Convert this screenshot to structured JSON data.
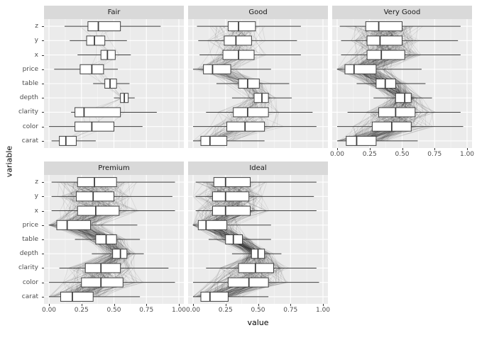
{
  "chart_data": {
    "type": "boxplot",
    "subtype": "faceted-horizontal-boxplots-with-parallel-coordinate-lines",
    "xlabel": "value",
    "ylabel": "variable",
    "xlim": [
      0,
      1
    ],
    "x_ticks": [
      "0.00",
      "0.25",
      "0.50",
      "0.75",
      "1.00"
    ],
    "x_tick_values": [
      0,
      0.25,
      0.5,
      0.75,
      1
    ],
    "categories_order": "top-to-bottom",
    "categories": [
      "z",
      "y",
      "x",
      "price",
      "table",
      "depth",
      "clarity",
      "color",
      "carat"
    ],
    "box_stats_key": [
      "min",
      "q1",
      "median",
      "q3",
      "max"
    ],
    "layout": {
      "rows": 2,
      "cols": 3,
      "grid": "off-white-on-gray",
      "legend": "none"
    },
    "style": {
      "panel_bg": "#EBEBEB",
      "strip_bg": "#D9D9D9",
      "grid_major": "#FFFFFF",
      "grid_minor": "#F5F5F5",
      "box_fill": "#FFFFFF",
      "box_stroke": "#3F3F3F",
      "line_rgba": "rgba(0,0,0,0.09)",
      "tick_text": "#4D4D4D"
    },
    "facets": [
      {
        "label": "Fair",
        "row": 0,
        "col": 0,
        "show_x_axis": false,
        "line_count": 6,
        "seed": 11,
        "boxes": {
          "z": [
            0.12,
            0.3,
            0.38,
            0.55,
            0.86
          ],
          "y": [
            0.16,
            0.29,
            0.35,
            0.43,
            0.6
          ],
          "x": [
            0.22,
            0.4,
            0.45,
            0.51,
            0.63
          ],
          "price": [
            0.04,
            0.24,
            0.33,
            0.42,
            0.53
          ],
          "table": [
            0.34,
            0.43,
            0.47,
            0.52,
            0.62
          ],
          "depth": [
            0.5,
            0.55,
            0.58,
            0.61,
            0.66
          ],
          "clarity": [
            0.17,
            0.2,
            0.27,
            0.55,
            0.83
          ],
          "color": [
            0.0,
            0.2,
            0.33,
            0.5,
            0.72
          ],
          "carat": [
            0.02,
            0.08,
            0.13,
            0.21,
            0.36
          ]
        }
      },
      {
        "label": "Good",
        "row": 0,
        "col": 1,
        "show_x_axis": false,
        "line_count": 70,
        "seed": 22,
        "boxes": {
          "z": [
            0.03,
            0.27,
            0.35,
            0.48,
            0.83
          ],
          "y": [
            0.04,
            0.24,
            0.33,
            0.45,
            0.8
          ],
          "x": [
            0.05,
            0.23,
            0.35,
            0.47,
            0.83
          ],
          "price": [
            0.0,
            0.08,
            0.15,
            0.29,
            0.6
          ],
          "table": [
            0.18,
            0.35,
            0.42,
            0.51,
            0.74
          ],
          "depth": [
            0.3,
            0.47,
            0.53,
            0.58,
            0.76
          ],
          "clarity": [
            0.1,
            0.31,
            0.42,
            0.58,
            0.92
          ],
          "color": [
            0.0,
            0.26,
            0.4,
            0.55,
            0.95
          ],
          "carat": [
            0.0,
            0.06,
            0.13,
            0.26,
            0.55
          ]
        }
      },
      {
        "label": "Very Good",
        "row": 0,
        "col": 2,
        "show_x_axis": true,
        "line_count": 170,
        "seed": 33,
        "boxes": {
          "z": [
            0.02,
            0.22,
            0.32,
            0.5,
            0.95
          ],
          "y": [
            0.03,
            0.23,
            0.33,
            0.5,
            0.93
          ],
          "x": [
            0.03,
            0.23,
            0.34,
            0.52,
            0.95
          ],
          "price": [
            0.0,
            0.06,
            0.13,
            0.3,
            0.65
          ],
          "table": [
            0.15,
            0.3,
            0.37,
            0.45,
            0.68
          ],
          "depth": [
            0.28,
            0.45,
            0.52,
            0.57,
            0.73
          ],
          "clarity": [
            0.08,
            0.32,
            0.45,
            0.6,
            0.95
          ],
          "color": [
            0.0,
            0.27,
            0.42,
            0.57,
            0.97
          ],
          "carat": [
            0.0,
            0.07,
            0.15,
            0.3,
            0.62
          ]
        }
      },
      {
        "label": "Premium",
        "row": 1,
        "col": 0,
        "show_x_axis": true,
        "line_count": 150,
        "seed": 44,
        "boxes": {
          "z": [
            0.02,
            0.22,
            0.35,
            0.52,
            0.97
          ],
          "y": [
            0.02,
            0.21,
            0.34,
            0.5,
            0.95
          ],
          "x": [
            0.02,
            0.22,
            0.36,
            0.54,
            0.97
          ],
          "price": [
            0.0,
            0.06,
            0.14,
            0.32,
            0.68
          ],
          "table": [
            0.2,
            0.36,
            0.44,
            0.52,
            0.7
          ],
          "depth": [
            0.33,
            0.49,
            0.55,
            0.6,
            0.73
          ],
          "clarity": [
            0.08,
            0.28,
            0.4,
            0.55,
            0.92
          ],
          "color": [
            0.0,
            0.25,
            0.4,
            0.57,
            0.97
          ],
          "carat": [
            0.0,
            0.09,
            0.18,
            0.34,
            0.7
          ]
        }
      },
      {
        "label": "Ideal",
        "row": 1,
        "col": 1,
        "show_x_axis": true,
        "line_count": 170,
        "seed": 55,
        "boxes": {
          "z": [
            0.02,
            0.16,
            0.25,
            0.44,
            0.95
          ],
          "y": [
            0.02,
            0.15,
            0.25,
            0.43,
            0.93
          ],
          "x": [
            0.02,
            0.15,
            0.25,
            0.44,
            0.95
          ],
          "price": [
            0.0,
            0.04,
            0.1,
            0.26,
            0.6
          ],
          "table": [
            0.12,
            0.25,
            0.31,
            0.38,
            0.6
          ],
          "depth": [
            0.3,
            0.45,
            0.5,
            0.55,
            0.68
          ],
          "clarity": [
            0.1,
            0.35,
            0.48,
            0.62,
            0.95
          ],
          "color": [
            0.0,
            0.27,
            0.43,
            0.58,
            0.97
          ],
          "carat": [
            0.0,
            0.06,
            0.13,
            0.27,
            0.58
          ]
        }
      }
    ]
  }
}
